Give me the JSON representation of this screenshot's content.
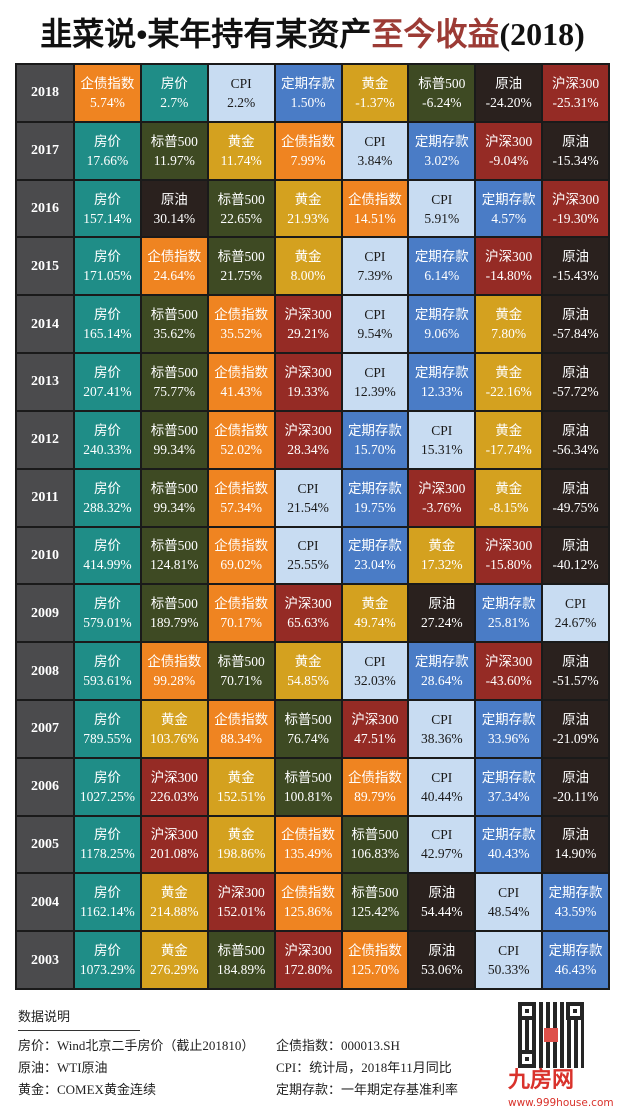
{
  "title": {
    "main": "韭菜说•某年持有某资产",
    "highlight": "至今收益",
    "suffix": "(2018)"
  },
  "asset_colors": {
    "企债指数": "#ef8421",
    "房价": "#1f8d87",
    "CPI": "#c8dcf2",
    "定期存款": "#4a7cc6",
    "黄金": "#d4a11f",
    "标普500": "#3e4a23",
    "原油": "#2a211e",
    "沪深300": "#952b25"
  },
  "rows": [
    {
      "year": "2018",
      "cells": [
        [
          "企债指数",
          "5.74%"
        ],
        [
          "房价",
          "2.7%"
        ],
        [
          "CPI",
          "2.2%"
        ],
        [
          "定期存款",
          "1.50%"
        ],
        [
          "黄金",
          "-1.37%"
        ],
        [
          "标普500",
          "-6.24%"
        ],
        [
          "原油",
          "-24.20%"
        ],
        [
          "沪深300",
          "-25.31%"
        ]
      ]
    },
    {
      "year": "2017",
      "cells": [
        [
          "房价",
          "17.66%"
        ],
        [
          "标普500",
          "11.97%"
        ],
        [
          "黄金",
          "11.74%"
        ],
        [
          "企债指数",
          "7.99%"
        ],
        [
          "CPI",
          "3.84%"
        ],
        [
          "定期存款",
          "3.02%"
        ],
        [
          "沪深300",
          "-9.04%"
        ],
        [
          "原油",
          "-15.34%"
        ]
      ]
    },
    {
      "year": "2016",
      "cells": [
        [
          "房价",
          "157.14%"
        ],
        [
          "原油",
          "30.14%"
        ],
        [
          "标普500",
          "22.65%"
        ],
        [
          "黄金",
          "21.93%"
        ],
        [
          "企债指数",
          "14.51%"
        ],
        [
          "CPI",
          "5.91%"
        ],
        [
          "定期存款",
          "4.57%"
        ],
        [
          "沪深300",
          "-19.30%"
        ]
      ]
    },
    {
      "year": "2015",
      "cells": [
        [
          "房价",
          "171.05%"
        ],
        [
          "企债指数",
          "24.64%"
        ],
        [
          "标普500",
          "21.75%"
        ],
        [
          "黄金",
          "8.00%"
        ],
        [
          "CPI",
          "7.39%"
        ],
        [
          "定期存款",
          "6.14%"
        ],
        [
          "沪深300",
          "-14.80%"
        ],
        [
          "原油",
          "-15.43%"
        ]
      ]
    },
    {
      "year": "2014",
      "cells": [
        [
          "房价",
          "165.14%"
        ],
        [
          "标普500",
          "35.62%"
        ],
        [
          "企债指数",
          "35.52%"
        ],
        [
          "沪深300",
          "29.21%"
        ],
        [
          "CPI",
          "9.54%"
        ],
        [
          "定期存款",
          "9.06%"
        ],
        [
          "黄金",
          "7.80%"
        ],
        [
          "原油",
          "-57.84%"
        ]
      ]
    },
    {
      "year": "2013",
      "cells": [
        [
          "房价",
          "207.41%"
        ],
        [
          "标普500",
          "75.77%"
        ],
        [
          "企债指数",
          "41.43%"
        ],
        [
          "沪深300",
          "19.33%"
        ],
        [
          "CPI",
          "12.39%"
        ],
        [
          "定期存款",
          "12.33%"
        ],
        [
          "黄金",
          "-22.16%"
        ],
        [
          "原油",
          "-57.72%"
        ]
      ]
    },
    {
      "year": "2012",
      "cells": [
        [
          "房价",
          "240.33%"
        ],
        [
          "标普500",
          "99.34%"
        ],
        [
          "企债指数",
          "52.02%"
        ],
        [
          "沪深300",
          "28.34%"
        ],
        [
          "定期存款",
          "15.70%"
        ],
        [
          "CPI",
          "15.31%"
        ],
        [
          "黄金",
          "-17.74%"
        ],
        [
          "原油",
          "-56.34%"
        ]
      ]
    },
    {
      "year": "2011",
      "cells": [
        [
          "房价",
          "288.32%"
        ],
        [
          "标普500",
          "99.34%"
        ],
        [
          "企债指数",
          "57.34%"
        ],
        [
          "CPI",
          "21.54%"
        ],
        [
          "定期存款",
          "19.75%"
        ],
        [
          "沪深300",
          "-3.76%"
        ],
        [
          "黄金",
          "-8.15%"
        ],
        [
          "原油",
          "-49.75%"
        ]
      ]
    },
    {
      "year": "2010",
      "cells": [
        [
          "房价",
          "414.99%"
        ],
        [
          "标普500",
          "124.81%"
        ],
        [
          "企债指数",
          "69.02%"
        ],
        [
          "CPI",
          "25.55%"
        ],
        [
          "定期存款",
          "23.04%"
        ],
        [
          "黄金",
          "17.32%"
        ],
        [
          "沪深300",
          "-15.80%"
        ],
        [
          "原油",
          "-40.12%"
        ]
      ]
    },
    {
      "year": "2009",
      "cells": [
        [
          "房价",
          "579.01%"
        ],
        [
          "标普500",
          "189.79%"
        ],
        [
          "企债指数",
          "70.17%"
        ],
        [
          "沪深300",
          "65.63%"
        ],
        [
          "黄金",
          "49.74%"
        ],
        [
          "原油",
          "27.24%"
        ],
        [
          "定期存款",
          "25.81%"
        ],
        [
          "CPI",
          "24.67%"
        ]
      ]
    },
    {
      "year": "2008",
      "cells": [
        [
          "房价",
          "593.61%"
        ],
        [
          "企债指数",
          "99.28%"
        ],
        [
          "标普500",
          "70.71%"
        ],
        [
          "黄金",
          "54.85%"
        ],
        [
          "CPI",
          "32.03%"
        ],
        [
          "定期存款",
          "28.64%"
        ],
        [
          "沪深300",
          "-43.60%"
        ],
        [
          "原油",
          "-51.57%"
        ]
      ]
    },
    {
      "year": "2007",
      "cells": [
        [
          "房价",
          "789.55%"
        ],
        [
          "黄金",
          "103.76%"
        ],
        [
          "企债指数",
          "88.34%"
        ],
        [
          "标普500",
          "76.74%"
        ],
        [
          "沪深300",
          "47.51%"
        ],
        [
          "CPI",
          "38.36%"
        ],
        [
          "定期存款",
          "33.96%"
        ],
        [
          "原油",
          "-21.09%"
        ]
      ]
    },
    {
      "year": "2006",
      "cells": [
        [
          "房价",
          "1027.25%"
        ],
        [
          "沪深300",
          "226.03%"
        ],
        [
          "黄金",
          "152.51%"
        ],
        [
          "标普500",
          "100.81%"
        ],
        [
          "企债指数",
          "89.79%"
        ],
        [
          "CPI",
          "40.44%"
        ],
        [
          "定期存款",
          "37.34%"
        ],
        [
          "原油",
          "-20.11%"
        ]
      ]
    },
    {
      "year": "2005",
      "cells": [
        [
          "房价",
          "1178.25%"
        ],
        [
          "沪深300",
          "201.08%"
        ],
        [
          "黄金",
          "198.86%"
        ],
        [
          "企债指数",
          "135.49%"
        ],
        [
          "标普500",
          "106.83%"
        ],
        [
          "CPI",
          "42.97%"
        ],
        [
          "定期存款",
          "40.43%"
        ],
        [
          "原油",
          "14.90%"
        ]
      ]
    },
    {
      "year": "2004",
      "cells": [
        [
          "房价",
          "1162.14%"
        ],
        [
          "黄金",
          "214.88%"
        ],
        [
          "沪深300",
          "152.01%"
        ],
        [
          "企债指数",
          "125.86%"
        ],
        [
          "标普500",
          "125.42%"
        ],
        [
          "原油",
          "54.44%"
        ],
        [
          "CPI",
          "48.54%"
        ],
        [
          "定期存款",
          "43.59%"
        ]
      ]
    },
    {
      "year": "2003",
      "cells": [
        [
          "房价",
          "1073.29%"
        ],
        [
          "黄金",
          "276.29%"
        ],
        [
          "标普500",
          "184.89%"
        ],
        [
          "沪深300",
          "172.80%"
        ],
        [
          "企债指数",
          "125.70%"
        ],
        [
          "原油",
          "53.06%"
        ],
        [
          "CPI",
          "50.33%"
        ],
        [
          "定期存款",
          "46.43%"
        ]
      ]
    }
  ],
  "notes": {
    "heading": "数据说明",
    "items": [
      [
        "房价：Wind北京二手房价（截止201810）",
        "企债指数：000013.SH"
      ],
      [
        "原油：WTI原油",
        "CPI：统计局，2018年11月同比"
      ],
      [
        "黄金：COMEX黄金连续",
        "定期存款：一年期定存基准利率"
      ]
    ]
  },
  "brand": {
    "logo": "九房网",
    "url": "www.999house.com"
  }
}
